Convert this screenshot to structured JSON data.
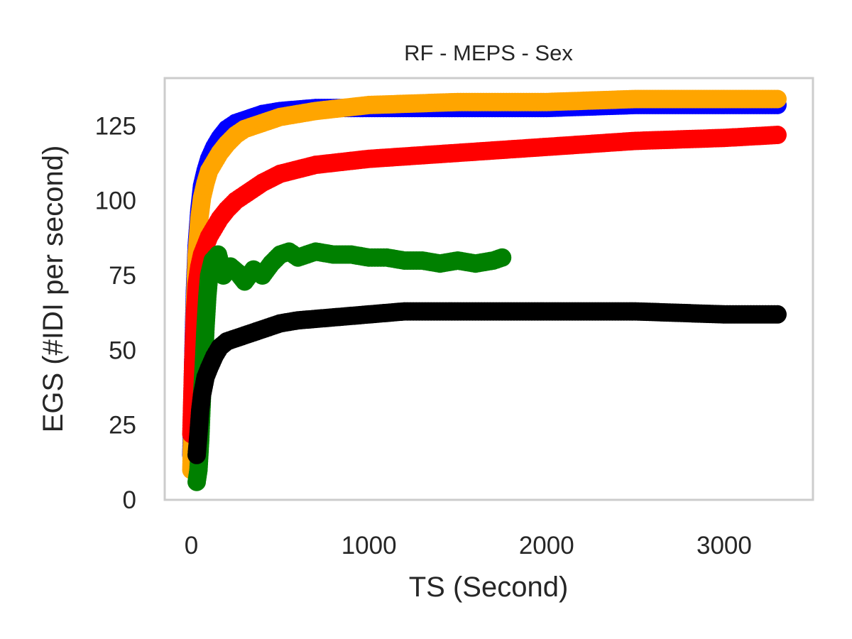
{
  "chart_data": {
    "type": "scatter",
    "title": "RF - MEPS - Sex",
    "xlabel": "TS (Second)",
    "ylabel": "EGS (#IDI  per second)",
    "xlim": [
      -150,
      3500
    ],
    "ylim": [
      0,
      141
    ],
    "xticks": [
      0,
      1000,
      2000,
      3000
    ],
    "yticks": [
      0,
      25,
      50,
      75,
      100,
      125
    ],
    "grid": false,
    "frame_color": "#cccccc",
    "series": [
      {
        "color": "#0000ff",
        "x": [
          0,
          10,
          20,
          30,
          45,
          60,
          80,
          100,
          130,
          160,
          200,
          250,
          300,
          400,
          500,
          700,
          1000,
          1500,
          2000,
          2500,
          3000,
          3300
        ],
        "y": [
          15,
          45,
          70,
          85,
          97,
          105,
          110,
          114,
          118,
          121,
          124,
          126,
          127,
          129,
          130,
          131,
          131,
          131,
          131,
          132,
          132,
          132
        ]
      },
      {
        "color": "#ffa500",
        "x": [
          0,
          10,
          20,
          30,
          45,
          60,
          80,
          100,
          130,
          160,
          200,
          250,
          300,
          400,
          500,
          700,
          1000,
          1500,
          2000,
          2500,
          3000,
          3300
        ],
        "y": [
          10,
          40,
          65,
          82,
          94,
          101,
          106,
          110,
          113,
          116,
          119,
          122,
          124,
          126,
          128,
          130,
          132,
          133,
          133,
          134,
          134,
          134
        ]
      },
      {
        "color": "#ff0000",
        "x": [
          0,
          10,
          20,
          30,
          45,
          60,
          80,
          100,
          130,
          160,
          200,
          250,
          300,
          400,
          500,
          700,
          1000,
          1500,
          2000,
          2500,
          3000,
          3300
        ],
        "y": [
          22,
          45,
          62,
          72,
          78,
          82,
          85,
          88,
          91,
          94,
          97,
          100,
          102,
          106,
          109,
          112,
          114,
          116,
          118,
          120,
          121,
          122
        ]
      },
      {
        "color": "#008000",
        "x": [
          30,
          40,
          50,
          60,
          70,
          80,
          90,
          100,
          120,
          150,
          180,
          220,
          260,
          300,
          350,
          400,
          450,
          500,
          550,
          600,
          700,
          800,
          900,
          1000,
          1100,
          1200,
          1300,
          1400,
          1500,
          1600,
          1700,
          1750
        ],
        "y": [
          6,
          10,
          20,
          35,
          45,
          58,
          68,
          75,
          80,
          82,
          75,
          78,
          76,
          73,
          77,
          75,
          79,
          82,
          83,
          81,
          83,
          82,
          82,
          81,
          81,
          80,
          80,
          79,
          80,
          79,
          80,
          81
        ]
      },
      {
        "color": "#000000",
        "x": [
          30,
          40,
          50,
          60,
          70,
          80,
          100,
          130,
          160,
          200,
          250,
          300,
          400,
          500,
          600,
          800,
          1000,
          1200,
          1400,
          1600,
          1800,
          2000,
          2500,
          3000,
          3300
        ],
        "y": [
          15,
          22,
          30,
          35,
          38,
          41,
          44,
          48,
          51,
          53,
          54,
          55,
          57,
          59,
          60,
          61,
          62,
          63,
          63,
          63,
          63,
          63,
          63,
          62,
          62
        ]
      }
    ]
  }
}
